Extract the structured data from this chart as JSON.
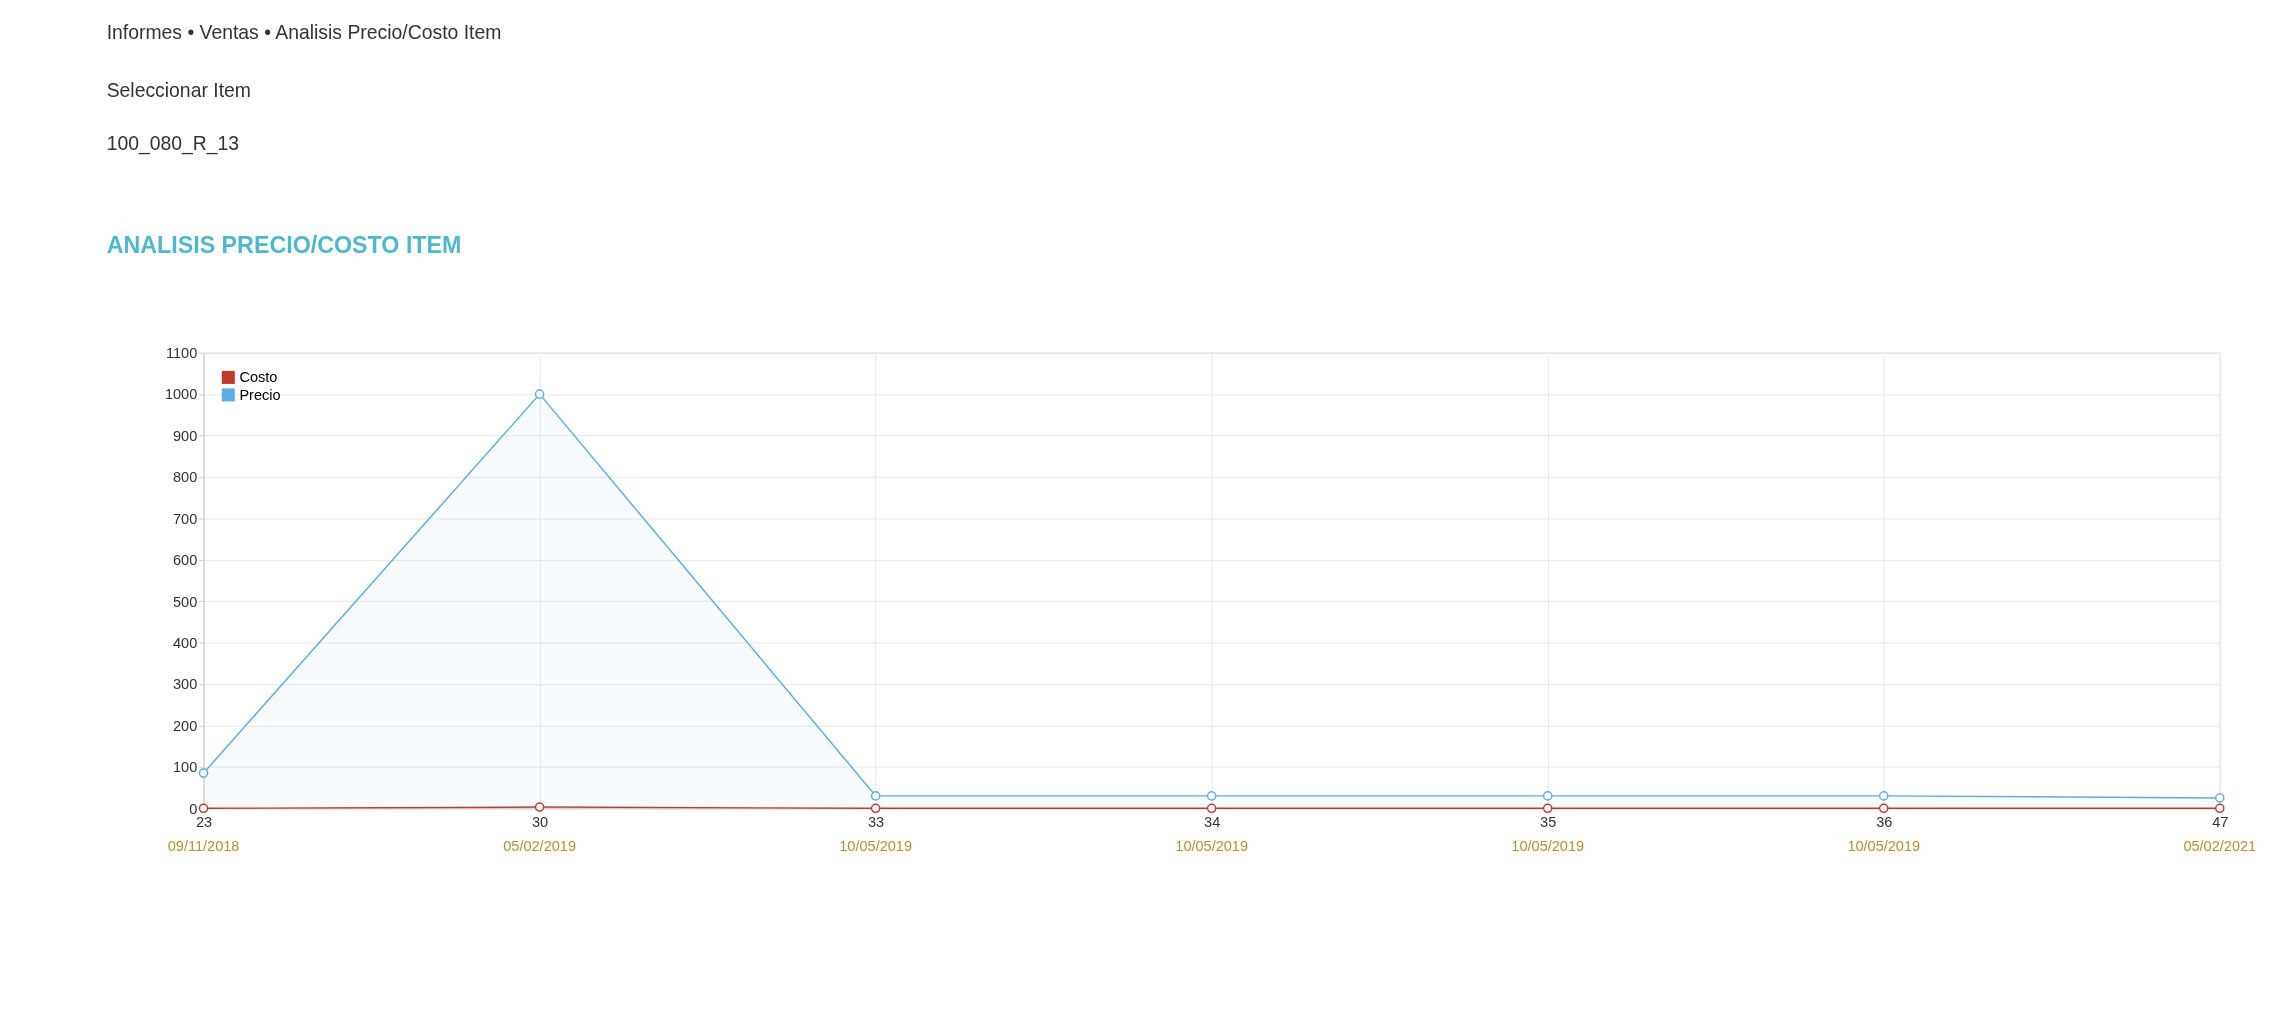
{
  "chart_data": {
    "type": "line",
    "title": "ANALISIS PRECIO/COSTO ITEM",
    "annotations": [
      "Informes • Ventas • Analisis Precio/Costo Item",
      "Seleccionar Item",
      "100_080_R_13"
    ],
    "categories": [
      "23\n09/11/2018",
      "30\n05/02/2019",
      "33\n10/05/2019",
      "34\n10/05/2019",
      "35\n10/05/2019",
      "36\n10/05/2019",
      "47\n05/02/2021"
    ],
    "series": [
      {
        "name": "Costo",
        "color": "#c0392b",
        "values": [
          0,
          3,
          0,
          0,
          0,
          0,
          0
        ]
      },
      {
        "name": "Precio",
        "color": "#5dade2",
        "type": "area",
        "values": [
          85,
          1000,
          30,
          30,
          30,
          30,
          25
        ]
      }
    ],
    "ylim": [
      0,
      1100
    ],
    "yticks": [
      0,
      100,
      200,
      300,
      400,
      500,
      600,
      700,
      800,
      900,
      1000,
      1100
    ],
    "grid": true,
    "legend": "top left",
    "marker": "circle"
  }
}
